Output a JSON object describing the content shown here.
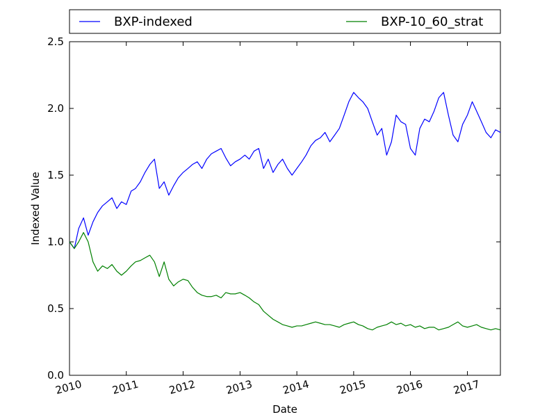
{
  "chart_data": {
    "type": "line",
    "title": "",
    "xlabel": "Date",
    "ylabel": "Indexed Value",
    "xlim": [
      "2010-01-01",
      "2017-08-01"
    ],
    "ylim": [
      0.0,
      2.5
    ],
    "yticks": [
      "0.0",
      "0.5",
      "1.0",
      "1.5",
      "2.0",
      "2.5"
    ],
    "xticks": [
      "2010",
      "2011",
      "2012",
      "2013",
      "2014",
      "2015",
      "2016",
      "2017"
    ],
    "grid": false,
    "legend_placement": "top, outside plot",
    "series": [
      {
        "name": "BXP-indexed",
        "color": "#0000ff",
        "points": [
          [
            "2010-01-01",
            1.0
          ],
          [
            "2010-02-01",
            0.95
          ],
          [
            "2010-03-01",
            1.1
          ],
          [
            "2010-04-01",
            1.18
          ],
          [
            "2010-05-01",
            1.05
          ],
          [
            "2010-06-01",
            1.15
          ],
          [
            "2010-07-01",
            1.22
          ],
          [
            "2010-08-01",
            1.27
          ],
          [
            "2010-09-01",
            1.3
          ],
          [
            "2010-10-01",
            1.33
          ],
          [
            "2010-11-01",
            1.25
          ],
          [
            "2010-12-01",
            1.3
          ],
          [
            "2011-01-01",
            1.28
          ],
          [
            "2011-02-01",
            1.38
          ],
          [
            "2011-03-01",
            1.4
          ],
          [
            "2011-04-01",
            1.45
          ],
          [
            "2011-05-01",
            1.52
          ],
          [
            "2011-06-01",
            1.58
          ],
          [
            "2011-07-01",
            1.62
          ],
          [
            "2011-08-01",
            1.4
          ],
          [
            "2011-09-01",
            1.45
          ],
          [
            "2011-10-01",
            1.35
          ],
          [
            "2011-11-01",
            1.42
          ],
          [
            "2011-12-01",
            1.48
          ],
          [
            "2012-01-01",
            1.52
          ],
          [
            "2012-02-01",
            1.55
          ],
          [
            "2012-03-01",
            1.58
          ],
          [
            "2012-04-01",
            1.6
          ],
          [
            "2012-05-01",
            1.55
          ],
          [
            "2012-06-01",
            1.62
          ],
          [
            "2012-07-01",
            1.66
          ],
          [
            "2012-08-01",
            1.68
          ],
          [
            "2012-09-01",
            1.7
          ],
          [
            "2012-10-01",
            1.63
          ],
          [
            "2012-11-01",
            1.57
          ],
          [
            "2012-12-01",
            1.6
          ],
          [
            "2013-01-01",
            1.62
          ],
          [
            "2013-02-01",
            1.65
          ],
          [
            "2013-03-01",
            1.62
          ],
          [
            "2013-04-01",
            1.68
          ],
          [
            "2013-05-01",
            1.7
          ],
          [
            "2013-06-01",
            1.55
          ],
          [
            "2013-07-01",
            1.62
          ],
          [
            "2013-08-01",
            1.52
          ],
          [
            "2013-09-01",
            1.58
          ],
          [
            "2013-10-01",
            1.62
          ],
          [
            "2013-11-01",
            1.55
          ],
          [
            "2013-12-01",
            1.5
          ],
          [
            "2014-01-01",
            1.55
          ],
          [
            "2014-02-01",
            1.6
          ],
          [
            "2014-03-01",
            1.65
          ],
          [
            "2014-04-01",
            1.72
          ],
          [
            "2014-05-01",
            1.76
          ],
          [
            "2014-06-01",
            1.78
          ],
          [
            "2014-07-01",
            1.82
          ],
          [
            "2014-08-01",
            1.75
          ],
          [
            "2014-09-01",
            1.8
          ],
          [
            "2014-10-01",
            1.85
          ],
          [
            "2014-11-01",
            1.95
          ],
          [
            "2014-12-01",
            2.05
          ],
          [
            "2015-01-01",
            2.12
          ],
          [
            "2015-02-01",
            2.08
          ],
          [
            "2015-03-01",
            2.05
          ],
          [
            "2015-04-01",
            2.0
          ],
          [
            "2015-05-01",
            1.9
          ],
          [
            "2015-06-01",
            1.8
          ],
          [
            "2015-07-01",
            1.85
          ],
          [
            "2015-08-01",
            1.65
          ],
          [
            "2015-09-01",
            1.75
          ],
          [
            "2015-10-01",
            1.95
          ],
          [
            "2015-11-01",
            1.9
          ],
          [
            "2015-12-01",
            1.88
          ],
          [
            "2016-01-01",
            1.7
          ],
          [
            "2016-02-01",
            1.65
          ],
          [
            "2016-03-01",
            1.85
          ],
          [
            "2016-04-01",
            1.92
          ],
          [
            "2016-05-01",
            1.9
          ],
          [
            "2016-06-01",
            1.98
          ],
          [
            "2016-07-01",
            2.08
          ],
          [
            "2016-08-01",
            2.12
          ],
          [
            "2016-09-01",
            1.95
          ],
          [
            "2016-10-01",
            1.8
          ],
          [
            "2016-11-01",
            1.75
          ],
          [
            "2016-12-01",
            1.88
          ],
          [
            "2017-01-01",
            1.95
          ],
          [
            "2017-02-01",
            2.05
          ],
          [
            "2017-03-01",
            1.98
          ],
          [
            "2017-04-01",
            1.9
          ],
          [
            "2017-05-01",
            1.82
          ],
          [
            "2017-06-01",
            1.78
          ],
          [
            "2017-07-01",
            1.84
          ],
          [
            "2017-08-01",
            1.82
          ]
        ]
      },
      {
        "name": "BXP-10_60_strat",
        "color": "#008000",
        "points": [
          [
            "2010-01-01",
            1.0
          ],
          [
            "2010-02-01",
            0.95
          ],
          [
            "2010-03-01",
            1.0
          ],
          [
            "2010-04-01",
            1.07
          ],
          [
            "2010-05-01",
            1.0
          ],
          [
            "2010-06-01",
            0.85
          ],
          [
            "2010-07-01",
            0.78
          ],
          [
            "2010-08-01",
            0.82
          ],
          [
            "2010-09-01",
            0.8
          ],
          [
            "2010-10-01",
            0.83
          ],
          [
            "2010-11-01",
            0.78
          ],
          [
            "2010-12-01",
            0.75
          ],
          [
            "2011-01-01",
            0.78
          ],
          [
            "2011-02-01",
            0.82
          ],
          [
            "2011-03-01",
            0.85
          ],
          [
            "2011-04-01",
            0.86
          ],
          [
            "2011-05-01",
            0.88
          ],
          [
            "2011-06-01",
            0.9
          ],
          [
            "2011-07-01",
            0.85
          ],
          [
            "2011-08-01",
            0.74
          ],
          [
            "2011-09-01",
            0.85
          ],
          [
            "2011-10-01",
            0.72
          ],
          [
            "2011-11-01",
            0.67
          ],
          [
            "2011-12-01",
            0.7
          ],
          [
            "2012-01-01",
            0.72
          ],
          [
            "2012-02-01",
            0.71
          ],
          [
            "2012-03-01",
            0.66
          ],
          [
            "2012-04-01",
            0.62
          ],
          [
            "2012-05-01",
            0.6
          ],
          [
            "2012-06-01",
            0.59
          ],
          [
            "2012-07-01",
            0.59
          ],
          [
            "2012-08-01",
            0.6
          ],
          [
            "2012-09-01",
            0.58
          ],
          [
            "2012-10-01",
            0.62
          ],
          [
            "2012-11-01",
            0.61
          ],
          [
            "2012-12-01",
            0.61
          ],
          [
            "2013-01-01",
            0.62
          ],
          [
            "2013-02-01",
            0.6
          ],
          [
            "2013-03-01",
            0.58
          ],
          [
            "2013-04-01",
            0.55
          ],
          [
            "2013-05-01",
            0.53
          ],
          [
            "2013-06-01",
            0.48
          ],
          [
            "2013-07-01",
            0.45
          ],
          [
            "2013-08-01",
            0.42
          ],
          [
            "2013-09-01",
            0.4
          ],
          [
            "2013-10-01",
            0.38
          ],
          [
            "2013-11-01",
            0.37
          ],
          [
            "2013-12-01",
            0.36
          ],
          [
            "2014-01-01",
            0.37
          ],
          [
            "2014-02-01",
            0.37
          ],
          [
            "2014-03-01",
            0.38
          ],
          [
            "2014-04-01",
            0.39
          ],
          [
            "2014-05-01",
            0.4
          ],
          [
            "2014-06-01",
            0.39
          ],
          [
            "2014-07-01",
            0.38
          ],
          [
            "2014-08-01",
            0.38
          ],
          [
            "2014-09-01",
            0.37
          ],
          [
            "2014-10-01",
            0.36
          ],
          [
            "2014-11-01",
            0.38
          ],
          [
            "2014-12-01",
            0.39
          ],
          [
            "2015-01-01",
            0.4
          ],
          [
            "2015-02-01",
            0.38
          ],
          [
            "2015-03-01",
            0.37
          ],
          [
            "2015-04-01",
            0.35
          ],
          [
            "2015-05-01",
            0.34
          ],
          [
            "2015-06-01",
            0.36
          ],
          [
            "2015-07-01",
            0.37
          ],
          [
            "2015-08-01",
            0.38
          ],
          [
            "2015-09-01",
            0.4
          ],
          [
            "2015-10-01",
            0.38
          ],
          [
            "2015-11-01",
            0.39
          ],
          [
            "2015-12-01",
            0.37
          ],
          [
            "2016-01-01",
            0.38
          ],
          [
            "2016-02-01",
            0.36
          ],
          [
            "2016-03-01",
            0.37
          ],
          [
            "2016-04-01",
            0.35
          ],
          [
            "2016-05-01",
            0.36
          ],
          [
            "2016-06-01",
            0.36
          ],
          [
            "2016-07-01",
            0.34
          ],
          [
            "2016-08-01",
            0.35
          ],
          [
            "2016-09-01",
            0.36
          ],
          [
            "2016-10-01",
            0.38
          ],
          [
            "2016-11-01",
            0.4
          ],
          [
            "2016-12-01",
            0.37
          ],
          [
            "2017-01-01",
            0.36
          ],
          [
            "2017-02-01",
            0.37
          ],
          [
            "2017-03-01",
            0.38
          ],
          [
            "2017-04-01",
            0.36
          ],
          [
            "2017-05-01",
            0.35
          ],
          [
            "2017-06-01",
            0.34
          ],
          [
            "2017-07-01",
            0.35
          ],
          [
            "2017-08-01",
            0.34
          ]
        ]
      }
    ]
  }
}
